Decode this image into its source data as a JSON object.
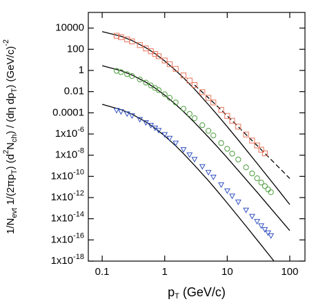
{
  "chart_data": {
    "type": "scatter",
    "xscale": "log",
    "yscale": "log",
    "x_label": [
      {
        "text": "p"
      },
      {
        "text": "T",
        "style": "sub"
      },
      {
        "text": " (GeV/c)"
      }
    ],
    "y_label": [
      {
        "text": "1/N"
      },
      {
        "text": "evt",
        "style": "sub"
      },
      {
        "text": " 1/(2πp"
      },
      {
        "text": "T",
        "style": "sub"
      },
      {
        "text": ") (d"
      },
      {
        "text": "2",
        "style": "sup"
      },
      {
        "text": "N"
      },
      {
        "text": "ch",
        "style": "sub"
      },
      {
        "text": ") / (dη dp"
      },
      {
        "text": "T",
        "style": "sub"
      },
      {
        "text": ") (GeV/c)"
      },
      {
        "text": "-2",
        "style": "sup"
      }
    ],
    "xlim": [
      0.06,
      175
    ],
    "ylim": [
      1e-18,
      300000.0
    ],
    "xticks": [
      0.1,
      1,
      10,
      100
    ],
    "yticks": [
      10000,
      100,
      1,
      0.01,
      0.0001,
      {
        "value": 1e-06,
        "label": "1x10-6"
      },
      {
        "value": 1e-08,
        "label": "1x10-8"
      },
      {
        "value": 1e-10,
        "label": "1x10-10"
      },
      {
        "value": 1e-12,
        "label": "1x10-12"
      },
      {
        "value": 1e-14,
        "label": "1x10-14"
      },
      {
        "value": 1e-16,
        "label": "1x10-16"
      },
      {
        "value": 1e-18,
        "label": "1x10-18"
      }
    ],
    "series": [
      {
        "color": "#e8735a",
        "marker": "square",
        "x": [
          0.17,
          0.2,
          0.25,
          0.3,
          0.4,
          0.5,
          0.6,
          0.7,
          0.8,
          1,
          1.2,
          1.5,
          2,
          2.5,
          3,
          4,
          5,
          6,
          8,
          10,
          12,
          15,
          20,
          25,
          30,
          35,
          40
        ],
        "values": [
          1900.0,
          1400.0,
          850.0,
          550.0,
          250.0,
          120.0,
          65,
          36,
          22,
          8.7,
          3.9,
          1.4,
          0.34,
          0.11,
          0.042,
          0.0089,
          0.0026,
          0.00095,
          0.00019,
          5.1e-05,
          1.8e-05,
          4.9e-06,
          8.9e-07,
          2.4e-07,
          8.3e-08,
          3.3e-08,
          1.5e-08
        ]
      },
      {
        "color": "#4a9a3a",
        "marker": "circle",
        "x": [
          0.17,
          0.2,
          0.25,
          0.3,
          0.4,
          0.5,
          0.6,
          0.7,
          0.8,
          1,
          1.2,
          1.5,
          2,
          2.5,
          3,
          4,
          5,
          6,
          8,
          10,
          12,
          15,
          20,
          25,
          30,
          35,
          40,
          45,
          50
        ],
        "values": [
          0.92,
          0.69,
          0.45,
          0.3,
          0.14,
          0.071,
          0.039,
          0.022,
          0.014,
          0.0056,
          0.0026,
          0.00095,
          0.00024,
          7.9e-05,
          3.1e-05,
          6.8e-06,
          2e-06,
          7.3e-07,
          1.4e-07,
          4e-08,
          1.4e-08,
          3.9e-09,
          7.1e-10,
          1.9e-10,
          6.6e-11,
          2.6e-11,
          1.2e-11,
          5.9e-12,
          3.2e-12
        ]
      },
      {
        "color": "#3050c0",
        "marker": "triangle-down",
        "x": [
          0.17,
          0.2,
          0.25,
          0.3,
          0.4,
          0.5,
          0.6,
          0.7,
          0.8,
          1,
          1.2,
          1.5,
          2,
          2.5,
          3,
          4,
          5,
          6,
          8,
          10,
          12,
          15,
          20,
          25,
          30,
          35,
          40,
          45,
          50
        ],
        "values": [
          0.00017,
          0.00013,
          8.1e-05,
          5.3e-05,
          2.4e-05,
          1.2e-05,
          6.6e-06,
          3.7e-06,
          2.2e-06,
          8.9e-07,
          4e-07,
          1.4e-07,
          3.4e-08,
          1.1e-08,
          4.1e-09,
          8.5e-10,
          2.4e-10,
          8.5e-11,
          1.6e-11,
          4.3e-12,
          1.4e-12,
          3.8e-13,
          6.6e-14,
          1.7e-14,
          5.6e-15,
          2.2e-15,
          9.7e-16,
          4.7e-16,
          2.5e-16
        ]
      }
    ],
    "fits": [
      {
        "color": "#000000",
        "style": "solid",
        "x": [
          0.1,
          0.2,
          0.3,
          0.5,
          0.7,
          1,
          1.5,
          2,
          3,
          5,
          7,
          10,
          15,
          20,
          30,
          50,
          70,
          100
        ],
        "values": [
          4700.0,
          1700.0,
          670.0,
          140.0,
          39,
          7.9,
          1.0,
          0.2,
          0.017,
          0.00059,
          6e-05,
          4.9e-06,
          2.7e-07,
          3.3e-08,
          1.7e-09,
          3.9e-11,
          3.2e-12,
          2.2e-13
        ]
      },
      {
        "color": "#000000",
        "style": "dashed",
        "x": [
          3,
          5,
          7,
          10,
          15,
          20,
          30,
          50,
          70,
          100
        ],
        "values": [
          0.042,
          0.0026,
          0.0004,
          5.1e-05,
          4.9e-06,
          8.9e-07,
          8.3e-08,
          4e-09,
          5.4e-10,
          6.3e-11
        ]
      },
      {
        "color": "#000000",
        "style": "solid",
        "x": [
          0.1,
          0.2,
          0.3,
          0.5,
          0.7,
          1,
          1.5,
          2,
          3,
          5,
          7,
          10,
          15,
          20,
          30,
          50,
          70,
          100
        ],
        "values": [
          2.8,
          0.95,
          0.37,
          0.078,
          0.022,
          0.0046,
          0.00061,
          0.00013,
          1.2e-05,
          5.1e-07,
          5.9e-08,
          5.5e-09,
          3.6e-10,
          5.1e-11,
          3.2e-12,
          9.3e-14,
          9.1e-15,
          7.6e-16
        ]
      },
      {
        "color": "#000000",
        "style": "solid",
        "x": [
          0.1,
          0.2,
          0.3,
          0.5,
          0.7,
          1,
          1.5,
          2,
          3,
          5,
          7,
          10,
          15,
          20,
          30,
          50,
          70
        ],
        "values": [
          0.00064,
          0.0002,
          7.4e-05,
          1.4e-05,
          3.5e-06,
          6.6e-07,
          7.6e-08,
          1.4e-08,
          1.1e-09,
          3.9e-11,
          3.8e-12,
          3e-13,
          1.6e-14,
          2e-15,
          1e-16,
          2.3e-18,
          1.9e-19
        ]
      }
    ]
  }
}
